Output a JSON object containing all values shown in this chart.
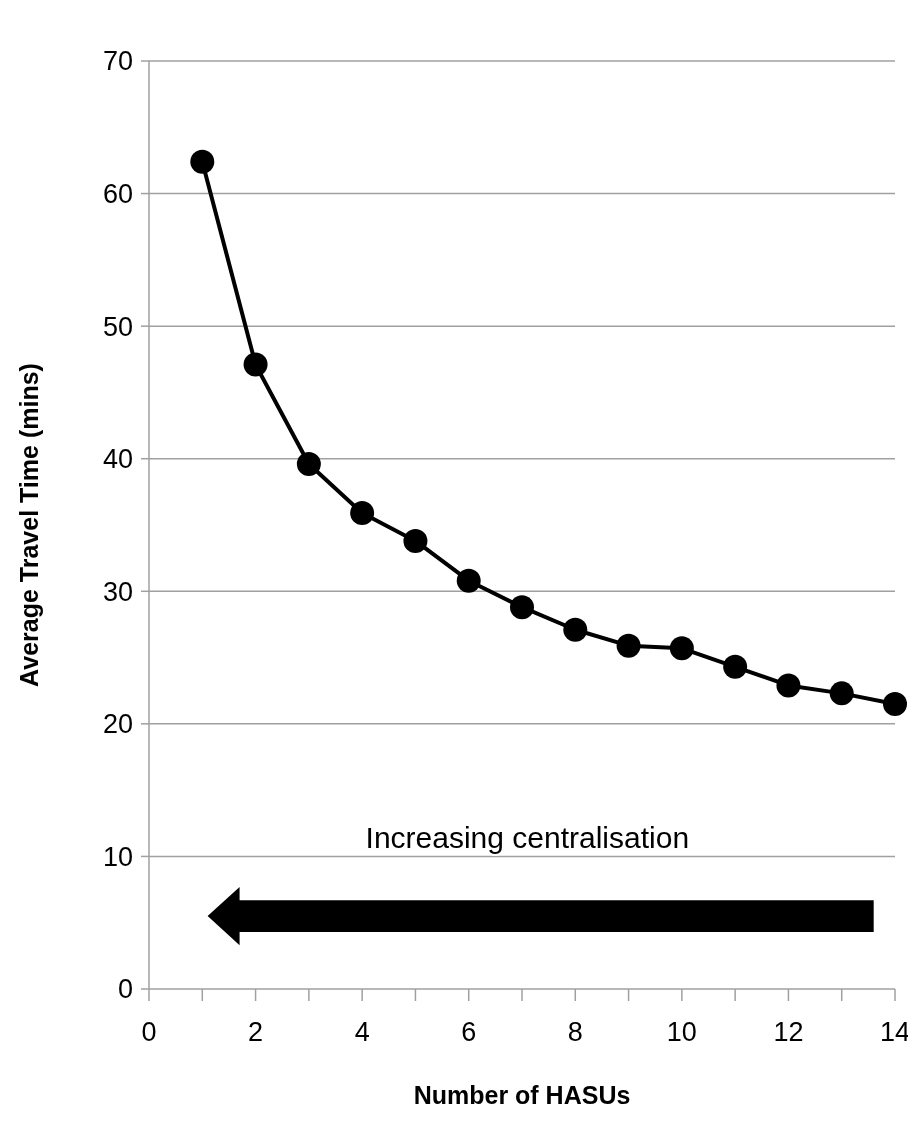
{
  "chart_data": {
    "type": "line",
    "xlabel": "Number of HASUs",
    "ylabel": "Average Travel Time (mins)",
    "x": [
      1,
      2,
      3,
      4,
      5,
      6,
      7,
      8,
      9,
      10,
      11,
      12,
      13,
      14
    ],
    "series": [
      {
        "color": "#000000",
        "values": [
          62.4,
          47.1,
          39.6,
          35.9,
          33.8,
          30.8,
          28.8,
          27.1,
          25.9,
          25.7,
          24.3,
          22.9,
          22.3,
          21.5
        ]
      }
    ],
    "xlim": [
      0,
      14
    ],
    "xticks": [
      0,
      {
        "value": 1,
        "label": null
      },
      2,
      {
        "value": 3,
        "label": null
      },
      4,
      {
        "value": 5,
        "label": null
      },
      6,
      {
        "value": 7,
        "label": null
      },
      8,
      {
        "value": 9,
        "label": null
      },
      10,
      {
        "value": 11,
        "label": null
      },
      12,
      {
        "value": 13,
        "label": null
      },
      14
    ],
    "ylim": [
      0,
      70
    ],
    "yticks": [
      0,
      10,
      20,
      30,
      40,
      50,
      60,
      70
    ],
    "grid": "y",
    "marker": "circle",
    "line_style": "solid",
    "annotations": [
      "Increasing centralisation"
    ]
  }
}
